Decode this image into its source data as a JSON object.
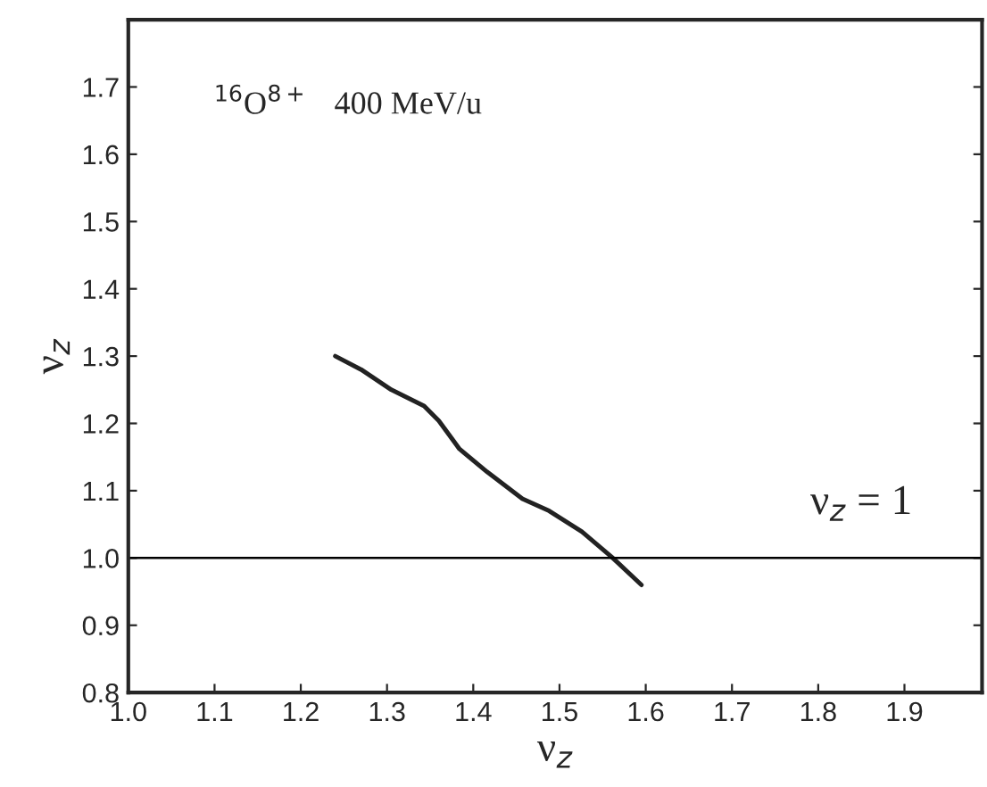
{
  "chart_data": {
    "type": "line",
    "xlabel": "ν$_{z}$",
    "ylabel": "ν$_{z}$",
    "annotations": [
      "$^{16}$O$^{8+}$   400 MeV/u"
    ],
    "series": [
      {
        "color": "#222222",
        "x": [
          1.24,
          1.27,
          1.305,
          1.343,
          1.36,
          1.384,
          1.416,
          1.457,
          1.488,
          1.526,
          1.561,
          1.595
        ],
        "values": [
          1.3,
          1.28,
          1.25,
          1.226,
          1.204,
          1.162,
          1.128,
          1.088,
          1.07,
          1.039,
          1.001,
          0.96
        ]
      }
    ],
    "ref_lines": [
      {
        "axis": "y",
        "value": 1.0,
        "label": "ν$_{z}$ = 1",
        "color": "#000000"
      }
    ],
    "xlim": [
      1.0,
      1.99
    ],
    "ylim": [
      0.8,
      1.8
    ],
    "xticks": [
      {
        "value": 1.0,
        "label": "1.0"
      },
      1.1,
      1.2,
      1.3,
      1.4,
      1.5,
      1.6,
      1.7,
      1.8,
      1.9
    ],
    "yticks": [
      0.8,
      0.9,
      {
        "value": 1.0,
        "label": "1.0"
      },
      1.1,
      1.2,
      1.3,
      1.4,
      1.5,
      1.6,
      1.7
    ],
    "grid": false,
    "legend": false
  }
}
